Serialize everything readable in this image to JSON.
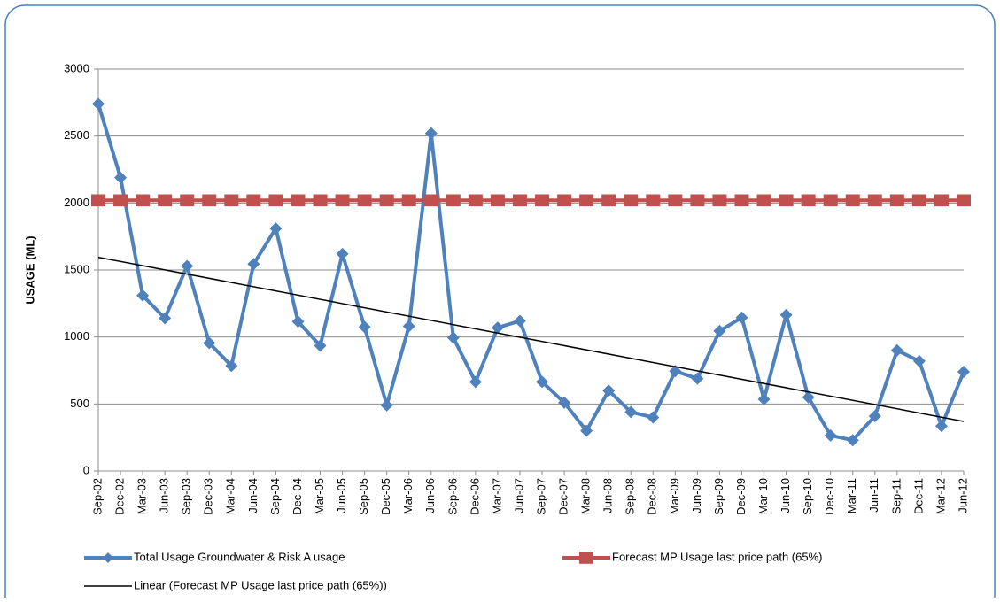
{
  "chart_data": {
    "type": "line",
    "y_label": "USAGE (ML)",
    "categories": [
      "Sep-02",
      "Dec-02",
      "Mar-03",
      "Jun-03",
      "Sep-03",
      "Dec-03",
      "Mar-04",
      "Jun-04",
      "Sep-04",
      "Dec-04",
      "Mar-05",
      "Jun-05",
      "Sep-05",
      "Dec-05",
      "Mar-06",
      "Jun-06",
      "Sep-06",
      "Dec-06",
      "Mar-07",
      "Jun-07",
      "Sep-07",
      "Dec-07",
      "Mar-08",
      "Jun-08",
      "Sep-08",
      "Dec-08",
      "Mar-09",
      "Jun-09",
      "Sep-09",
      "Dec-09",
      "Mar-10",
      "Jun-10",
      "Sep-10",
      "Dec-10",
      "Mar-11",
      "Jun-11",
      "Sep-11",
      "Dec-11",
      "Mar-12",
      "Jun-12"
    ],
    "series": [
      {
        "name": "Total Usage Groundwater & Risk A usage",
        "color": "#4f81bd",
        "marker": "diamond",
        "values": [
          2740,
          2190,
          1310,
          1140,
          1530,
          955,
          785,
          1545,
          1810,
          1115,
          935,
          1620,
          1075,
          490,
          1080,
          2520,
          995,
          665,
          1070,
          1120,
          665,
          510,
          300,
          600,
          440,
          400,
          745,
          690,
          1045,
          1145,
          535,
          1165,
          550,
          265,
          230,
          410,
          900,
          820,
          335,
          740
        ]
      },
      {
        "name": "Forecast MP Usage last price path (65%)",
        "color": "#c0504d",
        "marker": "square",
        "values": [
          2020,
          2020,
          2020,
          2020,
          2020,
          2020,
          2020,
          2020,
          2020,
          2020,
          2020,
          2020,
          2020,
          2020,
          2020,
          2020,
          2020,
          2020,
          2020,
          2020,
          2020,
          2020,
          2020,
          2020,
          2020,
          2020,
          2020,
          2020,
          2020,
          2020,
          2020,
          2020,
          2020,
          2020,
          2020,
          2020,
          2020,
          2020,
          2020,
          2020
        ]
      }
    ],
    "trendline": {
      "name": "Linear (Forecast MP Usage last price path (65%))",
      "color": "#000000",
      "values": [
        1595,
        370
      ]
    },
    "ylim": [
      0,
      3000
    ],
    "yticks": [
      0,
      500,
      1000,
      1500,
      2000,
      2500,
      3000
    ],
    "grid": true
  }
}
